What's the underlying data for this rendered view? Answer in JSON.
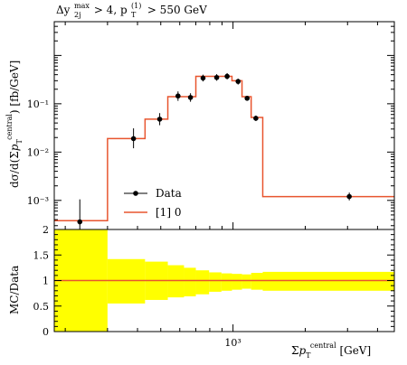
{
  "chart_data": [
    {
      "panel": "main",
      "type": "line",
      "title": "Δy2j^max > 4, pT^(1) > 550 GeV",
      "ylabel": "dσ/d(Σ pT^central) [fb/GeV]",
      "yscale": "log",
      "ylim": [
        0.00025,
        5
      ],
      "xlim": [
        180,
        4700
      ],
      "xscale": "log",
      "yticks": [
        {
          "value": 0.001,
          "label": "10⁻³"
        },
        {
          "value": 0.01,
          "label": "10⁻²"
        },
        {
          "value": 0.1,
          "label": "10⁻¹"
        }
      ],
      "legend": {
        "position": "bottom-left"
      },
      "series": [
        {
          "name": "Data",
          "style": "points",
          "color": "#000000",
          "points": [
            {
              "x": 230,
              "y": 0.00036,
              "ylo": 0.00013,
              "yhi": 0.00105
            },
            {
              "x": 385,
              "y": 0.019,
              "ylo": 0.012,
              "yhi": 0.031
            },
            {
              "x": 495,
              "y": 0.048,
              "ylo": 0.036,
              "yhi": 0.064
            },
            {
              "x": 590,
              "y": 0.145,
              "ylo": 0.115,
              "yhi": 0.18
            },
            {
              "x": 665,
              "y": 0.135,
              "ylo": 0.11,
              "yhi": 0.165
            },
            {
              "x": 750,
              "y": 0.34,
              "ylo": 0.29,
              "yhi": 0.4
            },
            {
              "x": 855,
              "y": 0.35,
              "ylo": 0.3,
              "yhi": 0.41
            },
            {
              "x": 945,
              "y": 0.37,
              "ylo": 0.32,
              "yhi": 0.43
            },
            {
              "x": 1050,
              "y": 0.29,
              "ylo": 0.25,
              "yhi": 0.33
            },
            {
              "x": 1145,
              "y": 0.13,
              "ylo": 0.115,
              "yhi": 0.145
            },
            {
              "x": 1245,
              "y": 0.05,
              "ylo": 0.044,
              "yhi": 0.057
            },
            {
              "x": 3050,
              "y": 0.0012,
              "ylo": 0.001,
              "yhi": 0.00145
            }
          ]
        },
        {
          "name": "[1] 0",
          "style": "histogram",
          "color": "#e8552f",
          "bins": [
            {
              "lo": 180,
              "hi": 300,
              "y": 0.00038
            },
            {
              "lo": 300,
              "hi": 430,
              "y": 0.019
            },
            {
              "lo": 430,
              "hi": 535,
              "y": 0.048
            },
            {
              "lo": 535,
              "hi": 625,
              "y": 0.14
            },
            {
              "lo": 625,
              "hi": 700,
              "y": 0.14
            },
            {
              "lo": 700,
              "hi": 795,
              "y": 0.37
            },
            {
              "lo": 795,
              "hi": 895,
              "y": 0.37
            },
            {
              "lo": 895,
              "hi": 990,
              "y": 0.37
            },
            {
              "lo": 990,
              "hi": 1090,
              "y": 0.3
            },
            {
              "lo": 1090,
              "hi": 1190,
              "y": 0.14
            },
            {
              "lo": 1190,
              "hi": 1330,
              "y": 0.052
            },
            {
              "lo": 1330,
              "hi": 4700,
              "y": 0.0012
            }
          ]
        }
      ]
    },
    {
      "panel": "ratio",
      "type": "area",
      "ylabel": "MC/Data",
      "xlabel": "Σ pT^central [GeV]",
      "xscale": "log",
      "xlim": [
        180,
        4700
      ],
      "ylim": [
        0,
        2
      ],
      "yticks": [
        {
          "value": 0,
          "label": "0"
        },
        {
          "value": 0.5,
          "label": "0.5"
        },
        {
          "value": 1,
          "label": "1"
        },
        {
          "value": 1.5,
          "label": "1.5"
        },
        {
          "value": 2,
          "label": "2"
        }
      ],
      "xticks": [
        {
          "value": 1000,
          "label": "10³"
        }
      ],
      "band_color": "#ffff00",
      "line_color": "#e8552f",
      "ratio_value": 1,
      "band": [
        {
          "lo": 180,
          "hi": 300,
          "low": 0.0,
          "high": 2.0
        },
        {
          "lo": 300,
          "hi": 430,
          "low": 0.55,
          "high": 1.42
        },
        {
          "lo": 430,
          "hi": 535,
          "low": 0.62,
          "high": 1.37
        },
        {
          "lo": 535,
          "hi": 625,
          "low": 0.67,
          "high": 1.3
        },
        {
          "lo": 625,
          "hi": 700,
          "low": 0.69,
          "high": 1.25
        },
        {
          "lo": 700,
          "hi": 795,
          "low": 0.73,
          "high": 1.2
        },
        {
          "lo": 795,
          "hi": 895,
          "low": 0.78,
          "high": 1.16
        },
        {
          "lo": 895,
          "hi": 990,
          "low": 0.8,
          "high": 1.14
        },
        {
          "lo": 990,
          "hi": 1090,
          "low": 0.82,
          "high": 1.13
        },
        {
          "lo": 1090,
          "hi": 1190,
          "low": 0.84,
          "high": 1.12
        },
        {
          "lo": 1190,
          "hi": 1330,
          "low": 0.82,
          "high": 1.15
        },
        {
          "lo": 1330,
          "hi": 4700,
          "low": 0.8,
          "high": 1.17
        }
      ]
    }
  ]
}
